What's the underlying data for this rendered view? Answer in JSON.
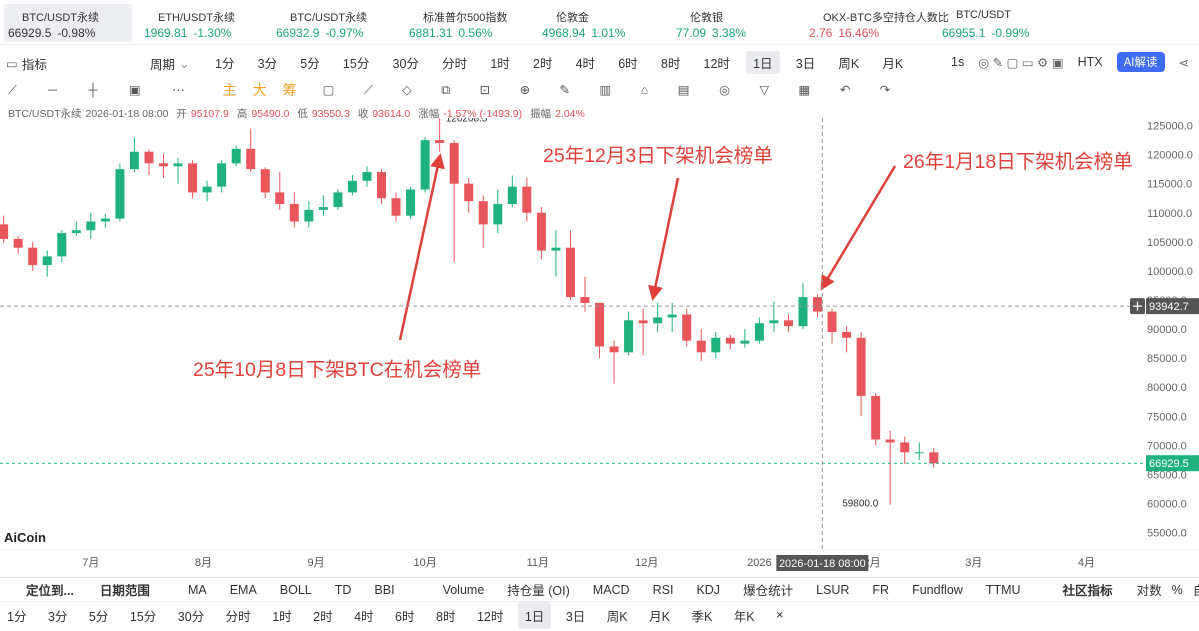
{
  "tickers": [
    {
      "name": "BTC/USDT永续",
      "price": "66929.5",
      "change": "-0.98%",
      "color": "#333333"
    },
    {
      "name": "ETH/USDT永续",
      "price": "1969.81",
      "change": "-1.30%",
      "color": "#1aa874"
    },
    {
      "name": "BTC/USDT永续",
      "price": "66932.9",
      "change": "-0.97%",
      "color": "#1aa874"
    },
    {
      "name": "标准普尔500指数",
      "price": "6881.31",
      "change": "0.56%",
      "color": "#1aa874"
    },
    {
      "name": "伦敦金",
      "price": "4968.94",
      "change": "1.01%",
      "color": "#1aa874"
    },
    {
      "name": "伦敦银",
      "price": "77.09",
      "change": "3.38%",
      "color": "#1aa874"
    },
    {
      "name": "OKX-BTC多空持仓人数比",
      "price": "2.76",
      "change": "16.46%",
      "color": "#e0505a"
    },
    {
      "name": "BTC/USDT",
      "price": "66955.1",
      "change": "-0.99%",
      "color": "#1aa874"
    }
  ],
  "toolbar": {
    "indicator": "指标",
    "period": "周期",
    "intervals": [
      "1分",
      "3分",
      "5分",
      "15分",
      "30分",
      "分时",
      "1时",
      "2时",
      "4时",
      "6时",
      "8时",
      "12时",
      "1日",
      "3日",
      "周K",
      "月K"
    ],
    "selected_index": 12,
    "seconds": "1s",
    "exchange": "HTX",
    "ai_button": "AI解读"
  },
  "draw_toolbar": {
    "chips": [
      "主",
      "大",
      "筹"
    ]
  },
  "info_bar": {
    "symbol": "BTC/USDT永续",
    "time": "2026-01-18 08:00",
    "items": [
      {
        "label": "开",
        "value": "95107.9"
      },
      {
        "label": "高",
        "value": "95490.0"
      },
      {
        "label": "低",
        "value": "93550.3"
      },
      {
        "label": "收",
        "value": "93614.0"
      },
      {
        "label": "涨幅",
        "value": "-1.57% (-1493.9)"
      },
      {
        "label": "振幅",
        "value": "2.04%"
      }
    ]
  },
  "chart_data": {
    "type": "candlestick",
    "watermark": "AiCoin",
    "x": [
      "2025-06-07",
      "2025-06-11",
      "2025-06-15",
      "2025-06-19",
      "2025-06-23",
      "2025-06-27",
      "2025-07-01",
      "2025-07-05",
      "2025-07-09",
      "2025-07-13",
      "2025-07-17",
      "2025-07-21",
      "2025-07-25",
      "2025-07-29",
      "2025-08-02",
      "2025-08-06",
      "2025-08-10",
      "2025-08-14",
      "2025-08-18",
      "2025-08-22",
      "2025-08-26",
      "2025-08-30",
      "2025-09-03",
      "2025-09-07",
      "2025-09-11",
      "2025-09-15",
      "2025-09-19",
      "2025-09-23",
      "2025-09-27",
      "2025-10-01",
      "2025-10-05",
      "2025-10-09",
      "2025-10-13",
      "2025-10-17",
      "2025-10-21",
      "2025-10-25",
      "2025-10-29",
      "2025-11-02",
      "2025-11-06",
      "2025-11-10",
      "2025-11-14",
      "2025-11-18",
      "2025-11-22",
      "2025-11-26",
      "2025-11-30",
      "2025-12-04",
      "2025-12-08",
      "2025-12-12",
      "2025-12-16",
      "2025-12-20",
      "2025-12-24",
      "2025-12-28",
      "2026-01-01",
      "2026-01-05",
      "2026-01-09",
      "2026-01-13",
      "2026-01-17",
      "2026-01-21",
      "2026-01-25",
      "2026-01-29",
      "2026-02-02",
      "2026-02-06",
      "2026-02-10",
      "2026-02-14",
      "2026-02-18"
    ],
    "open": [
      108000,
      105500,
      104000,
      101000,
      102500,
      106500,
      107000,
      108500,
      109000,
      117500,
      120500,
      118500,
      118000,
      118500,
      113500,
      114500,
      118500,
      121000,
      117500,
      113500,
      111500,
      108500,
      110500,
      111000,
      113500,
      115500,
      117000,
      112500,
      109500,
      114000,
      122500,
      122000,
      115000,
      112000,
      108000,
      111500,
      114500,
      110000,
      103500,
      104000,
      95500,
      94500,
      87000,
      86000,
      91500,
      91000,
      92000,
      92500,
      88000,
      86000,
      88500,
      87500,
      88000,
      91000,
      91500,
      90500,
      95500,
      93000,
      89500,
      88500,
      78500,
      71000,
      70500,
      68800,
      68800
    ],
    "high": [
      109500,
      106000,
      105000,
      103500,
      107000,
      108500,
      110000,
      109800,
      118500,
      123000,
      120900,
      120200,
      119500,
      119000,
      115500,
      119000,
      121500,
      124500,
      117800,
      117000,
      113500,
      112000,
      113000,
      114000,
      116500,
      118000,
      117500,
      113500,
      114500,
      123000,
      126208.5,
      122500,
      116000,
      113000,
      114000,
      116400,
      116000,
      111000,
      107000,
      107000,
      99000,
      94000,
      88000,
      93000,
      93500,
      94500,
      94500,
      93500,
      90000,
      89500,
      89000,
      90000,
      92000,
      94800,
      92500,
      97900,
      96000,
      93500,
      90500,
      89500,
      79000,
      72500,
      71500,
      70500,
      69500
    ],
    "low": [
      104800,
      103000,
      100000,
      99000,
      101500,
      106000,
      105500,
      107500,
      108500,
      117000,
      116500,
      116000,
      115000,
      112500,
      112000,
      113500,
      118000,
      117000,
      112500,
      110500,
      107500,
      107500,
      109500,
      110500,
      113000,
      114500,
      111500,
      108500,
      109000,
      113500,
      120500,
      101500,
      110000,
      104000,
      106500,
      111000,
      108500,
      102000,
      99000,
      95000,
      93000,
      85000,
      80600,
      85500,
      85500,
      89500,
      89500,
      87000,
      84500,
      85000,
      86500,
      86800,
      87500,
      89500,
      89500,
      90000,
      92000,
      87500,
      86000,
      75000,
      70000,
      59800,
      66800,
      67500,
      66200
    ],
    "close": [
      105500,
      104000,
      101000,
      102500,
      106500,
      107000,
      108500,
      109000,
      117500,
      120500,
      118500,
      118000,
      118500,
      113500,
      114500,
      118500,
      121000,
      117500,
      113500,
      111500,
      108500,
      110500,
      111000,
      113500,
      115500,
      117000,
      112500,
      109500,
      114000,
      122500,
      122000,
      115000,
      112000,
      108000,
      111500,
      114500,
      110000,
      103500,
      104000,
      95500,
      94500,
      87000,
      86000,
      91500,
      91000,
      92000,
      92500,
      88000,
      86000,
      88500,
      87500,
      88000,
      91000,
      91500,
      90500,
      95500,
      93000,
      89500,
      88500,
      78500,
      71000,
      70500,
      68800,
      68800,
      66929.5
    ],
    "up_color": "#1fb27e",
    "down_color": "#e8555a",
    "low_label": "59800.0",
    "xlim": [
      "2025-06-06",
      "2026-04-13"
    ],
    "xticks": [
      {
        "value": "2025-07-01",
        "label": "7月"
      },
      {
        "value": "2025-08-01",
        "label": "8月"
      },
      {
        "value": "2025-09-01",
        "label": "9月"
      },
      {
        "value": "2025-10-01",
        "label": "10月"
      },
      {
        "value": "2025-11-01",
        "label": "11月"
      },
      {
        "value": "2025-12-01",
        "label": "12月"
      },
      {
        "value": "2026-01-01",
        "label": "2026"
      },
      {
        "value": "2026-02-01",
        "label": "2月"
      },
      {
        "value": "2026-03-01",
        "label": "3月"
      },
      {
        "value": "2026-04-01",
        "label": "4月"
      }
    ],
    "ylim": [
      52000,
      126300
    ],
    "yticks": [
      {
        "value": 55000,
        "label": "55000.0"
      },
      {
        "value": 60000,
        "label": "60000.0"
      },
      {
        "value": 65000,
        "label": "65000.0"
      },
      {
        "value": 70000,
        "label": "70000.0"
      },
      {
        "value": 75000,
        "label": "75000.0"
      },
      {
        "value": 80000,
        "label": "80000.0"
      },
      {
        "value": 85000,
        "label": "85000.0"
      },
      {
        "value": 90000,
        "label": "90000.0"
      },
      {
        "value": 95000,
        "label": "95000.0"
      },
      {
        "value": 100000,
        "label": "100000.0"
      },
      {
        "value": 105000,
        "label": "105000.0"
      },
      {
        "value": 110000,
        "label": "110000.0"
      },
      {
        "value": 115000,
        "label": "115000.0"
      },
      {
        "value": 120000,
        "label": "120000.0"
      },
      {
        "value": 125000,
        "label": "125000.0"
      }
    ],
    "grid": false,
    "crosshair": {
      "time": "2026-01-18 08:00",
      "price": 93942.7
    },
    "annotations": [
      "25年12月3日下架机会榜单",
      "26年1月18日下架机会榜单",
      "25年10月8日下架BTC在机会榜单"
    ]
  },
  "bottom_bar": {
    "locate": "定位到...",
    "date_range": "日期范围",
    "indicators": [
      "MA",
      "EMA",
      "BOLL",
      "TD",
      "BBI",
      "Volume",
      "持仓量 (OI)",
      "MACD",
      "RSI",
      "KDJ",
      "爆仓统计",
      "LSUR",
      "FR",
      "Fundflow",
      "TTMU"
    ],
    "community": "社区指标",
    "options": [
      "对数",
      "%",
      "自动"
    ]
  },
  "interval_bar": {
    "items": [
      "1分",
      "3分",
      "5分",
      "15分",
      "30分",
      "分时",
      "1时",
      "2时",
      "4时",
      "6时",
      "8时",
      "12时",
      "1日",
      "3日",
      "周K",
      "月K",
      "季K",
      "年K",
      "×"
    ],
    "selected_index": 12
  }
}
